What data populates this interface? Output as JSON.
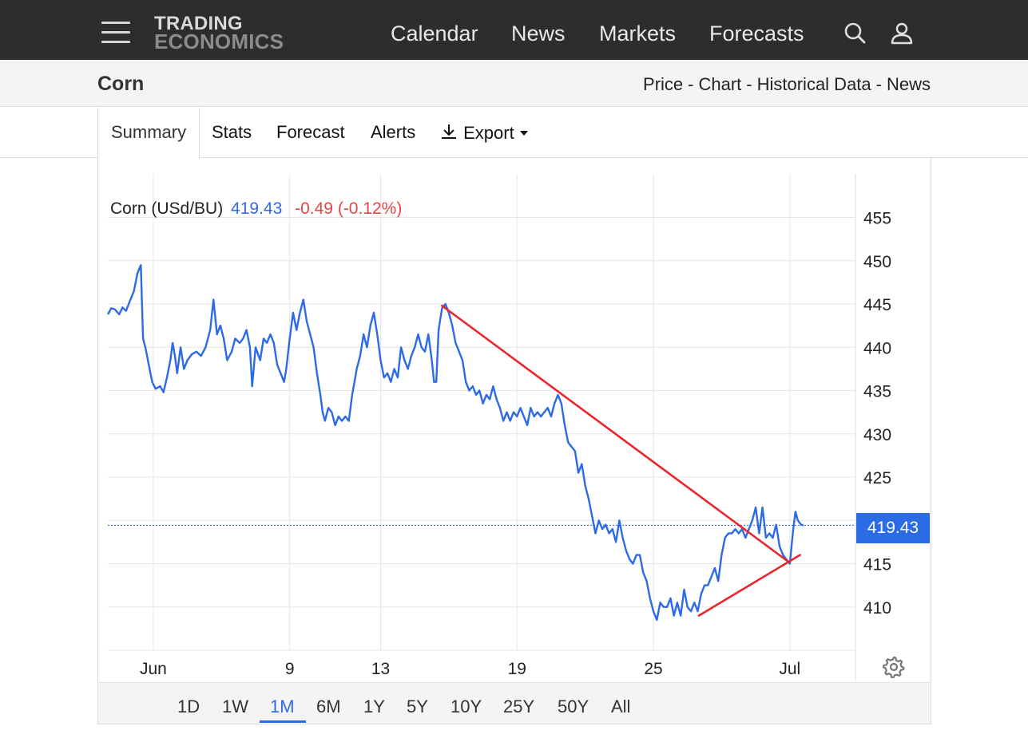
{
  "topbar": {
    "logo_line1": "TRADING",
    "logo_line2": "ECONOMICS",
    "nav": [
      "Calendar",
      "News",
      "Markets",
      "Forecasts"
    ],
    "icons": [
      "menu-icon",
      "search-icon",
      "user-icon"
    ]
  },
  "subheader": {
    "title": "Corn",
    "breadcrumbs": [
      "Price",
      "Chart",
      "Historical Data",
      "News"
    ],
    "separator": "-"
  },
  "tabs": {
    "items": [
      "Summary",
      "Stats",
      "Forecast",
      "Alerts"
    ],
    "export_label": "Export",
    "active": "Summary"
  },
  "chart_header": {
    "name": "Corn (USd/BU)",
    "price": "419.43",
    "change": "-0.49 (-0.12%)"
  },
  "last_price_badge": "419.43",
  "range_buttons": {
    "items": [
      "1D",
      "1W",
      "1M",
      "6M",
      "1Y",
      "5Y",
      "10Y",
      "25Y",
      "50Y",
      "All"
    ],
    "active": "1M"
  },
  "colors": {
    "line": "#2d6ae6",
    "trendline": "#e8262b",
    "change_negative": "#e64545",
    "topbar_bg": "#2d2d2d"
  },
  "chart_data": {
    "type": "line",
    "title": "Corn (USd/BU)",
    "xlabel": "",
    "ylabel": "",
    "ylim": [
      405,
      460
    ],
    "yticks": [
      410,
      415,
      420,
      425,
      430,
      435,
      440,
      445,
      450,
      455
    ],
    "ytick_labels": [
      "410",
      "415",
      "",
      "425",
      "430",
      "435",
      "440",
      "445",
      "450",
      "455"
    ],
    "xtick_labels": [
      {
        "label": "Jun",
        "day": 3
      },
      {
        "label": "9",
        "day": 9
      },
      {
        "label": "13",
        "day": 13
      },
      {
        "label": "19",
        "day": 19
      },
      {
        "label": "25",
        "day": 25
      },
      {
        "label": "Jul",
        "day": 31
      }
    ],
    "xrange_days": [
      1,
      32
    ],
    "grid": true,
    "last_value": 419.43,
    "series": [
      {
        "points": [
          [
            1.0,
            443.8
          ],
          [
            1.15,
            444.5
          ],
          [
            1.3,
            444.4
          ],
          [
            1.5,
            443.8
          ],
          [
            1.65,
            444.6
          ],
          [
            1.8,
            444.2
          ],
          [
            1.95,
            445.2
          ],
          [
            2.15,
            446.5
          ],
          [
            2.3,
            448.5
          ],
          [
            2.45,
            449.5
          ],
          [
            2.55,
            441.0
          ],
          [
            2.65,
            440.0
          ],
          [
            2.8,
            438.0
          ],
          [
            2.95,
            436.0
          ],
          [
            3.1,
            435.2
          ],
          [
            3.3,
            435.5
          ],
          [
            3.45,
            434.8
          ],
          [
            3.6,
            436.5
          ],
          [
            3.75,
            438.5
          ],
          [
            3.85,
            440.5
          ],
          [
            3.95,
            439.0
          ],
          [
            4.05,
            437.0
          ],
          [
            4.2,
            440.0
          ],
          [
            4.35,
            437.5
          ],
          [
            4.5,
            438.5
          ],
          [
            4.7,
            439.2
          ],
          [
            4.9,
            439.5
          ],
          [
            5.1,
            439.0
          ],
          [
            5.3,
            440.0
          ],
          [
            5.5,
            442.0
          ],
          [
            5.65,
            445.5
          ],
          [
            5.8,
            441.5
          ],
          [
            5.95,
            442.5
          ],
          [
            6.1,
            441.0
          ],
          [
            6.25,
            438.5
          ],
          [
            6.45,
            439.5
          ],
          [
            6.6,
            441.0
          ],
          [
            6.8,
            440.5
          ],
          [
            6.95,
            441.0
          ],
          [
            7.1,
            442.0
          ],
          [
            7.25,
            440.0
          ],
          [
            7.35,
            435.5
          ],
          [
            7.5,
            440.0
          ],
          [
            7.7,
            438.5
          ],
          [
            7.85,
            441.0
          ],
          [
            8.0,
            440.5
          ],
          [
            8.15,
            441.5
          ],
          [
            8.3,
            440.5
          ],
          [
            8.45,
            438.0
          ],
          [
            8.6,
            437.0
          ],
          [
            8.75,
            436.0
          ],
          [
            8.85,
            437.5
          ],
          [
            9.0,
            441.0
          ],
          [
            9.15,
            444.0
          ],
          [
            9.3,
            442.0
          ],
          [
            9.45,
            444.0
          ],
          [
            9.6,
            445.5
          ],
          [
            9.75,
            443.0
          ],
          [
            9.9,
            441.5
          ],
          [
            10.05,
            440.0
          ],
          [
            10.2,
            437.0
          ],
          [
            10.35,
            434.5
          ],
          [
            10.45,
            432.5
          ],
          [
            10.55,
            431.5
          ],
          [
            10.7,
            433.0
          ],
          [
            10.85,
            432.5
          ],
          [
            11.0,
            431.0
          ],
          [
            11.15,
            432.0
          ],
          [
            11.3,
            431.5
          ],
          [
            11.45,
            432.0
          ],
          [
            11.6,
            431.5
          ],
          [
            11.75,
            434.5
          ],
          [
            11.85,
            436.0
          ],
          [
            11.95,
            437.5
          ],
          [
            12.1,
            439.0
          ],
          [
            12.25,
            441.5
          ],
          [
            12.4,
            440.0
          ],
          [
            12.55,
            442.5
          ],
          [
            12.7,
            444.0
          ],
          [
            12.85,
            441.5
          ],
          [
            13.0,
            438.5
          ],
          [
            13.15,
            436.5
          ],
          [
            13.3,
            437.0
          ],
          [
            13.45,
            436.0
          ],
          [
            13.6,
            437.5
          ],
          [
            13.75,
            436.5
          ],
          [
            13.9,
            440.0
          ],
          [
            14.05,
            438.5
          ],
          [
            14.2,
            437.5
          ],
          [
            14.35,
            439.0
          ],
          [
            14.5,
            440.0
          ],
          [
            14.65,
            441.5
          ],
          [
            14.8,
            440.0
          ],
          [
            14.95,
            439.5
          ],
          [
            15.1,
            441.5
          ],
          [
            15.25,
            438.5
          ],
          [
            15.35,
            436.0
          ],
          [
            15.45,
            436.0
          ],
          [
            15.55,
            442.0
          ],
          [
            15.7,
            444.5
          ],
          [
            15.85,
            445.0
          ],
          [
            16.0,
            444.0
          ],
          [
            16.15,
            442.5
          ],
          [
            16.3,
            440.5
          ],
          [
            16.45,
            439.5
          ],
          [
            16.6,
            438.5
          ],
          [
            16.75,
            436.0
          ],
          [
            16.9,
            435.0
          ],
          [
            17.05,
            435.5
          ],
          [
            17.2,
            434.5
          ],
          [
            17.35,
            435.0
          ],
          [
            17.5,
            433.5
          ],
          [
            17.65,
            434.5
          ],
          [
            17.8,
            434.0
          ],
          [
            17.95,
            435.5
          ],
          [
            18.1,
            434.0
          ],
          [
            18.25,
            433.0
          ],
          [
            18.4,
            431.5
          ],
          [
            18.55,
            432.5
          ],
          [
            18.7,
            431.5
          ],
          [
            18.85,
            432.5
          ],
          [
            19.0,
            432.0
          ],
          [
            19.15,
            433.0
          ],
          [
            19.3,
            432.0
          ],
          [
            19.45,
            431.0
          ],
          [
            19.6,
            433.0
          ],
          [
            19.75,
            432.0
          ],
          [
            19.9,
            432.5
          ],
          [
            20.05,
            432.0
          ],
          [
            20.2,
            432.5
          ],
          [
            20.35,
            433.0
          ],
          [
            20.5,
            432.0
          ],
          [
            20.65,
            433.5
          ],
          [
            20.8,
            434.5
          ],
          [
            20.95,
            433.5
          ],
          [
            21.1,
            431.0
          ],
          [
            21.25,
            429.0
          ],
          [
            21.4,
            428.5
          ],
          [
            21.55,
            428.0
          ],
          [
            21.7,
            425.5
          ],
          [
            21.85,
            426.5
          ],
          [
            22.0,
            424.0
          ],
          [
            22.15,
            422.5
          ],
          [
            22.3,
            420.5
          ],
          [
            22.45,
            418.5
          ],
          [
            22.6,
            420.0
          ],
          [
            22.75,
            419.0
          ],
          [
            22.9,
            419.5
          ],
          [
            23.05,
            418.5
          ],
          [
            23.2,
            419.0
          ],
          [
            23.35,
            417.5
          ],
          [
            23.5,
            420.0
          ],
          [
            23.65,
            418.0
          ],
          [
            23.8,
            416.5
          ],
          [
            23.95,
            415.5
          ],
          [
            24.1,
            415.0
          ],
          [
            24.25,
            416.0
          ],
          [
            24.4,
            416.0
          ],
          [
            24.55,
            414.0
          ],
          [
            24.7,
            413.0
          ],
          [
            24.85,
            411.0
          ],
          [
            25.0,
            409.5
          ],
          [
            25.15,
            408.5
          ],
          [
            25.3,
            410.5
          ],
          [
            25.45,
            410.0
          ],
          [
            25.6,
            410.0
          ],
          [
            25.75,
            411.0
          ],
          [
            25.9,
            409.0
          ],
          [
            26.05,
            410.5
          ],
          [
            26.2,
            409.0
          ],
          [
            26.35,
            412.0
          ],
          [
            26.5,
            410.0
          ],
          [
            26.65,
            409.5
          ],
          [
            26.8,
            410.5
          ],
          [
            26.95,
            409.5
          ],
          [
            27.1,
            411.5
          ],
          [
            27.25,
            412.5
          ],
          [
            27.4,
            412.5
          ],
          [
            27.55,
            413.5
          ],
          [
            27.7,
            414.5
          ],
          [
            27.85,
            413.0
          ],
          [
            28.0,
            416.0
          ],
          [
            28.15,
            418.0
          ],
          [
            28.3,
            418.5
          ],
          [
            28.45,
            418.5
          ],
          [
            28.6,
            419.0
          ],
          [
            28.75,
            418.5
          ],
          [
            28.9,
            419.0
          ],
          [
            29.05,
            418.0
          ],
          [
            29.2,
            419.0
          ],
          [
            29.35,
            420.0
          ],
          [
            29.5,
            421.5
          ],
          [
            29.65,
            418.5
          ],
          [
            29.8,
            421.5
          ],
          [
            29.95,
            418.0
          ],
          [
            30.1,
            418.5
          ],
          [
            30.25,
            418.0
          ],
          [
            30.4,
            419.5
          ],
          [
            30.55,
            417.0
          ],
          [
            30.7,
            416.0
          ],
          [
            30.85,
            415.5
          ],
          [
            31.0,
            415.0
          ],
          [
            31.15,
            419.0
          ],
          [
            31.25,
            421.0
          ],
          [
            31.35,
            420.0
          ],
          [
            31.5,
            419.5
          ],
          [
            31.6,
            419.43
          ]
        ]
      }
    ],
    "trendlines": [
      {
        "from": [
          15.7,
          444.8
        ],
        "to": [
          30.9,
          415.3
        ]
      },
      {
        "from": [
          27.0,
          409.0
        ],
        "to": [
          31.45,
          416.0
        ]
      }
    ]
  }
}
